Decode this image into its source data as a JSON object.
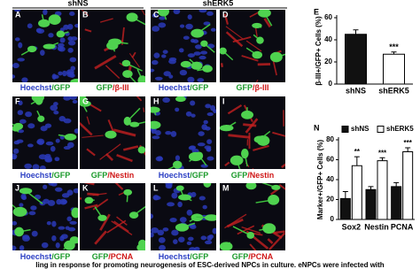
{
  "figure": {
    "headers": [
      "shNS",
      "shERK5"
    ],
    "panels": [
      {
        "label": "A",
        "caption": [
          {
            "text": "Hoechst",
            "color": "#2b3fc4"
          },
          {
            "text": "/GFP",
            "color": "#1a9a2a"
          }
        ]
      },
      {
        "label": "B",
        "caption": [
          {
            "text": "GFP",
            "color": "#1a9a2a"
          },
          {
            "text": "/β-III",
            "color": "#d01818"
          }
        ]
      },
      {
        "label": "C",
        "caption": [
          {
            "text": "Hoechst",
            "color": "#2b3fc4"
          },
          {
            "text": "/GFP",
            "color": "#1a9a2a"
          }
        ]
      },
      {
        "label": "D",
        "caption": [
          {
            "text": "GFP",
            "color": "#1a9a2a"
          },
          {
            "text": "/β-III",
            "color": "#d01818"
          }
        ]
      },
      {
        "label": "F",
        "caption": [
          {
            "text": "Hoechst",
            "color": "#2b3fc4"
          },
          {
            "text": "/GFP",
            "color": "#1a9a2a"
          }
        ]
      },
      {
        "label": "G",
        "caption": [
          {
            "text": "GFP",
            "color": "#1a9a2a"
          },
          {
            "text": "/Nestin",
            "color": "#d01818"
          }
        ]
      },
      {
        "label": "H",
        "caption": [
          {
            "text": "Hoechst",
            "color": "#2b3fc4"
          },
          {
            "text": "/GFP",
            "color": "#1a9a2a"
          }
        ]
      },
      {
        "label": "I",
        "caption": [
          {
            "text": "GFP",
            "color": "#1a9a2a"
          },
          {
            "text": "/Nestin",
            "color": "#d01818"
          }
        ]
      },
      {
        "label": "J",
        "caption": [
          {
            "text": "Hoechst",
            "color": "#2b3fc4"
          },
          {
            "text": "/GFP",
            "color": "#1a9a2a"
          }
        ]
      },
      {
        "label": "K",
        "caption": [
          {
            "text": "GFP",
            "color": "#1a9a2a"
          },
          {
            "text": "/PCNA",
            "color": "#d01818"
          }
        ]
      },
      {
        "label": "L",
        "caption": [
          {
            "text": "Hoechst",
            "color": "#2b3fc4"
          },
          {
            "text": "/GFP",
            "color": "#1a9a2a"
          }
        ]
      },
      {
        "label": "M",
        "caption": [
          {
            "text": "GFP",
            "color": "#1a9a2a"
          },
          {
            "text": "/PCNA",
            "color": "#d01818"
          }
        ]
      }
    ],
    "caption": "ling in response for promoting neurogenesis of ESC-derived NPCs in culture. eNPCs were infected with"
  },
  "chart_data": [
    {
      "type": "bar",
      "label": "E",
      "y_label": "β-III+/GFP+ Cells (%)",
      "categories": [
        "shNS",
        "shERK5"
      ],
      "values": [
        45,
        27
      ],
      "errors": [
        4,
        2
      ],
      "colors": [
        "#111111",
        "#ffffff"
      ],
      "annotations": [
        null,
        "***"
      ],
      "ylim": [
        0,
        60
      ],
      "yticks": [
        0,
        20,
        40,
        60
      ]
    },
    {
      "type": "grouped-bar",
      "label": "N",
      "y_label": "Marker+/GFP+ Cells (%)",
      "categories": [
        "Sox2",
        "Nestin",
        "PCNA"
      ],
      "series": [
        {
          "name": "shNS",
          "color": "#111111",
          "values": [
            21,
            30,
            33
          ],
          "errors": [
            7,
            3,
            4
          ]
        },
        {
          "name": "shERK5",
          "color": "#ffffff",
          "values": [
            54,
            59,
            68
          ],
          "errors": [
            9,
            3,
            4
          ],
          "annotations": [
            "**",
            "***",
            "***"
          ]
        }
      ],
      "ylim": [
        0,
        80
      ],
      "yticks": [
        0,
        20,
        40,
        60,
        80
      ],
      "legend": "top"
    }
  ]
}
